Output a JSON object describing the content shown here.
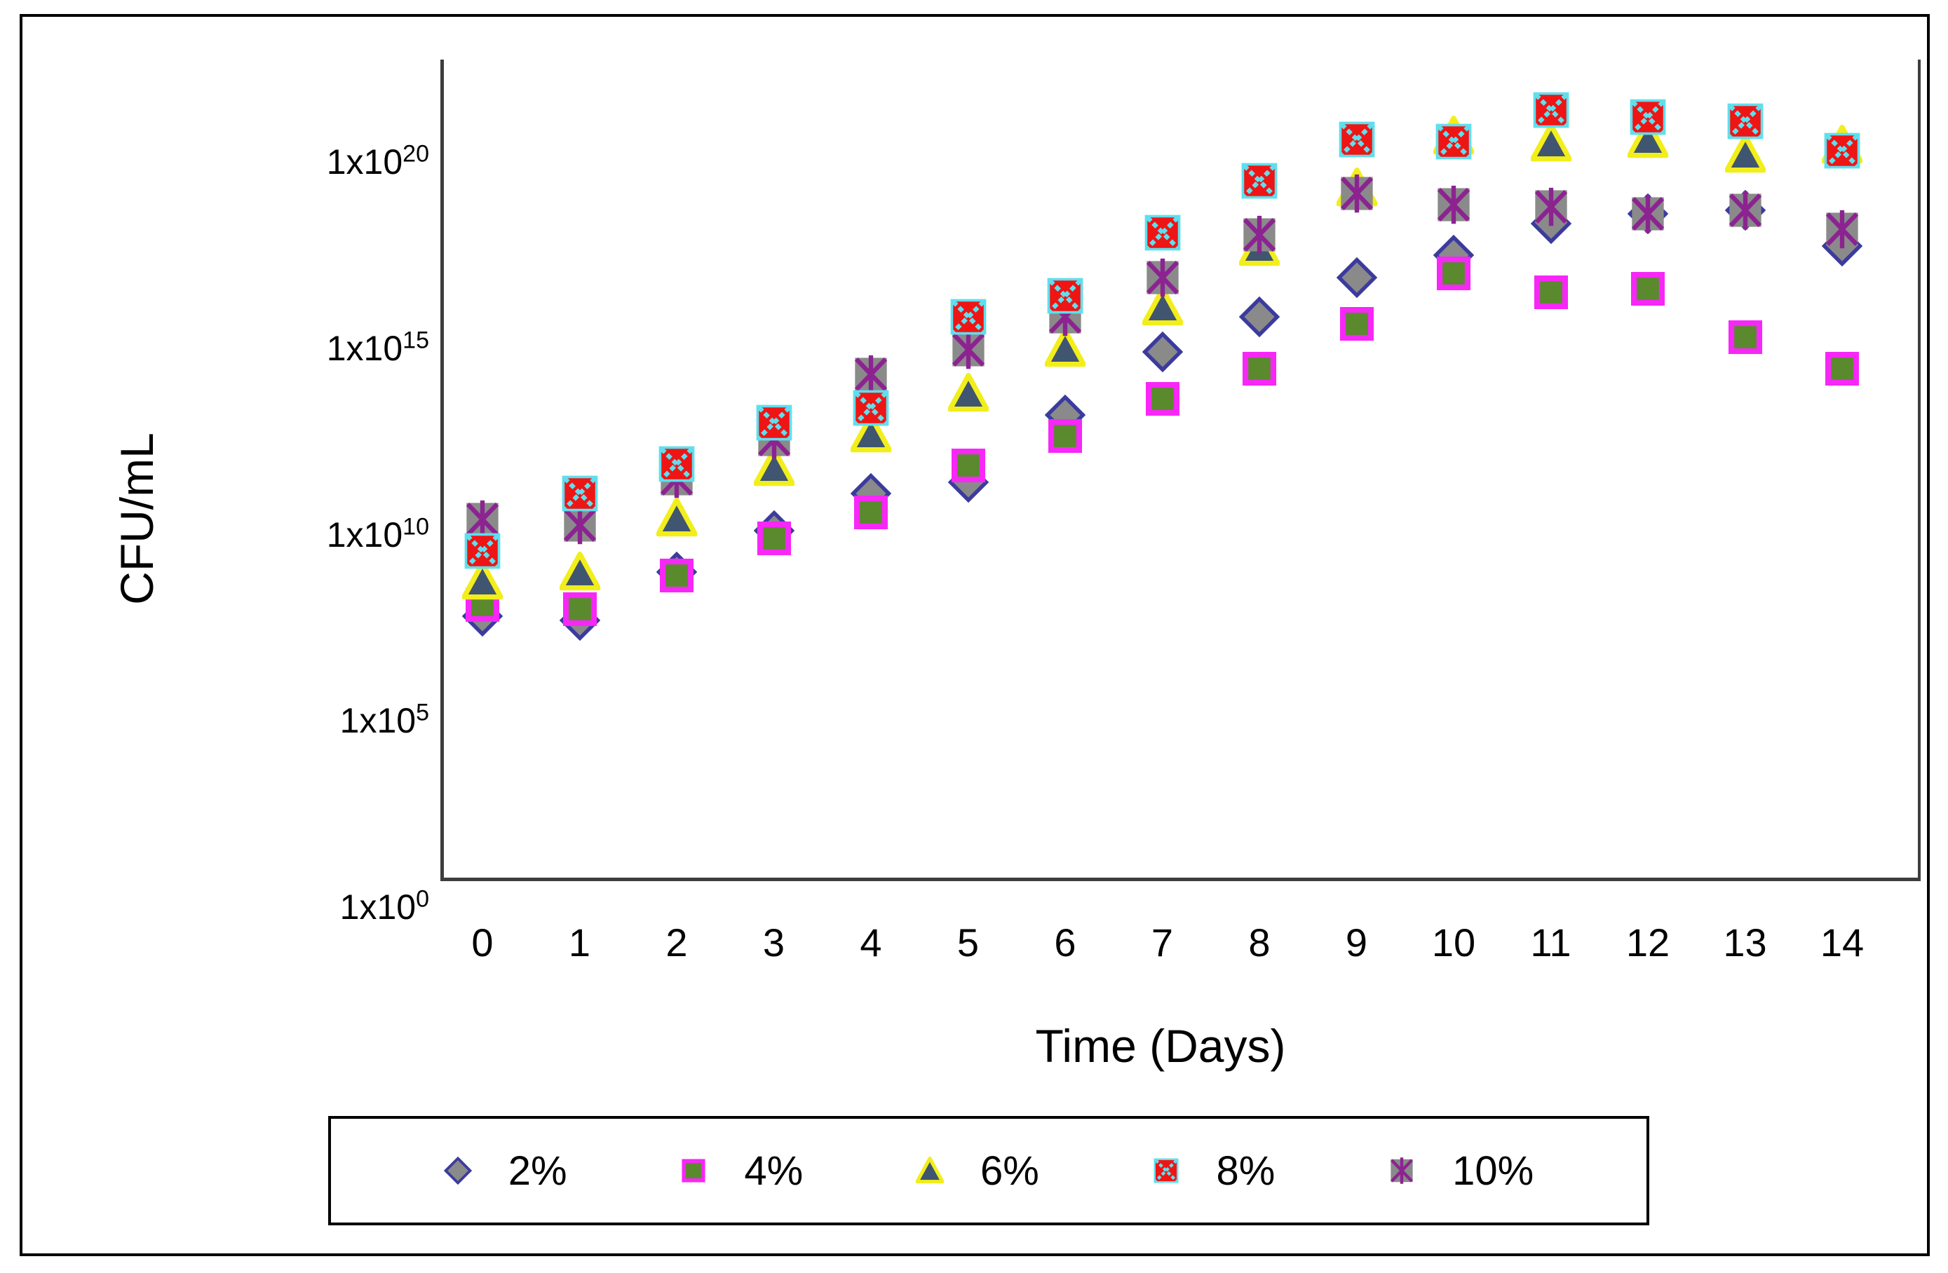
{
  "y_axis": {
    "label": "CFU/mL",
    "scale": "log10",
    "ticks": [
      {
        "base": "1x10",
        "exp": "20",
        "log": 20
      },
      {
        "base": "1x10",
        "exp": "15",
        "log": 15
      },
      {
        "base": "1x10",
        "exp": "10",
        "log": 10
      },
      {
        "base": "1x10",
        "exp": "5",
        "log": 5
      },
      {
        "base": "1x10",
        "exp": "0",
        "log": 0
      }
    ]
  },
  "x_axis": {
    "label": "Time (Days)",
    "ticks": [
      "0",
      "1",
      "2",
      "3",
      "4",
      "5",
      "6",
      "7",
      "8",
      "9",
      "10",
      "11",
      "12",
      "13",
      "14"
    ]
  },
  "legend": {
    "items": [
      {
        "label": "2%",
        "series": "2%"
      },
      {
        "label": "4%",
        "series": "4%"
      },
      {
        "label": "6%",
        "series": "6%"
      },
      {
        "label": "8%",
        "series": "8%"
      },
      {
        "label": "10%",
        "series": "10%"
      }
    ]
  },
  "chart_data": {
    "type": "scatter",
    "title": "",
    "xlabel": "Time (Days)",
    "ylabel": "CFU/mL",
    "x": [
      0,
      1,
      2,
      3,
      4,
      5,
      6,
      7,
      8,
      9,
      10,
      11,
      12,
      13,
      14
    ],
    "y_scale": "log10",
    "y_tick_exponents": [
      0,
      5,
      10,
      15,
      20
    ],
    "grid": false,
    "legend_position": "bottom",
    "series": [
      {
        "name": "2%",
        "marker": "diamond",
        "fill": "#8a8a8a",
        "stroke": "#3b3b9e",
        "log10": [
          7.8,
          7.7,
          9.0,
          10.1,
          11.1,
          11.4,
          13.2,
          14.9,
          15.85,
          16.9,
          17.5,
          18.35,
          18.6,
          18.7,
          17.75
        ],
        "values": [
          63000000.0,
          50000000.0,
          1000000000.0,
          13000000000.0,
          130000000000.0,
          250000000000.0,
          16000000000000.0,
          790000000000000.0,
          7100000000000000.0,
          7.9e+16,
          3.2e+17,
          2.2e+18,
          4e+18,
          5e+18,
          5.6e+17
        ]
      },
      {
        "name": "4%",
        "marker": "square",
        "fill": "#5a8a2d",
        "stroke": "#f727f7",
        "log10": [
          8.1,
          8.0,
          8.9,
          9.9,
          10.6,
          11.85,
          12.65,
          13.65,
          14.45,
          15.65,
          17.0,
          16.5,
          16.6,
          15.3,
          14.45
        ],
        "values": [
          130000000.0,
          100000000.0,
          790000000.0,
          7900000000.0,
          40000000000.0,
          710000000000.0,
          4500000000000.0,
          45000000000000.0,
          280000000000000.0,
          4500000000000000.0,
          1e+17,
          3.2e+16,
          4e+16,
          2000000000000000.0,
          280000000000000.0
        ]
      },
      {
        "name": "6%",
        "marker": "triangle",
        "fill": "#40556f",
        "stroke": "#f2ee1b",
        "log10": [
          8.75,
          9.0,
          10.45,
          11.8,
          12.7,
          13.8,
          15.0,
          16.1,
          17.7,
          19.3,
          20.7,
          20.5,
          20.6,
          20.2,
          20.45
        ],
        "values": [
          560000000.0,
          1000000000.0,
          28000000000.0,
          630000000000.0,
          5000000000000.0,
          63000000000000.0,
          1000000000000000.0,
          1.3e+16,
          5e+17,
          2e+19,
          5e+20,
          3.2e+20,
          4e+20,
          1.6e+20,
          2.8e+20
        ]
      },
      {
        "name": "8%",
        "marker": "x-square",
        "fill": "#ee1515",
        "stroke": "#5fdfee",
        "log10": [
          9.55,
          11.1,
          11.9,
          13.0,
          13.4,
          15.85,
          16.4,
          18.1,
          19.5,
          20.6,
          20.55,
          21.4,
          21.2,
          21.1,
          20.3
        ],
        "values": [
          3500000000.0,
          130000000000.0,
          790000000000.0,
          10000000000000.0,
          25000000000000.0,
          710000000000000.0,
          2.5e+16,
          1.3e+18,
          3.2e+19,
          4e+20,
          3.5e+20,
          2.5e+21,
          1.6e+21,
          1.3e+21,
          2e+20
        ]
      },
      {
        "name": "10%",
        "marker": "asterisk",
        "fill": "#8a8a8a",
        "stroke": "#8c2391",
        "log10": [
          10.4,
          10.25,
          11.5,
          12.55,
          14.3,
          14.95,
          15.85,
          16.9,
          18.05,
          19.15,
          18.85,
          18.8,
          18.6,
          18.7,
          18.2
        ],
        "values": [
          25000000000.0,
          18000000000.0,
          320000000000.0,
          3500000000000.0,
          200000000000000.0,
          890000000000000.0,
          7100000000000000.0,
          7.9e+16,
          1.1e+18,
          1.4e+19,
          7.1e+18,
          6.3e+18,
          4e+18,
          5e+18,
          1.6e+18
        ]
      }
    ],
    "draw_order": [
      "2%",
      "4%",
      "6%",
      "10%",
      "8%"
    ]
  }
}
